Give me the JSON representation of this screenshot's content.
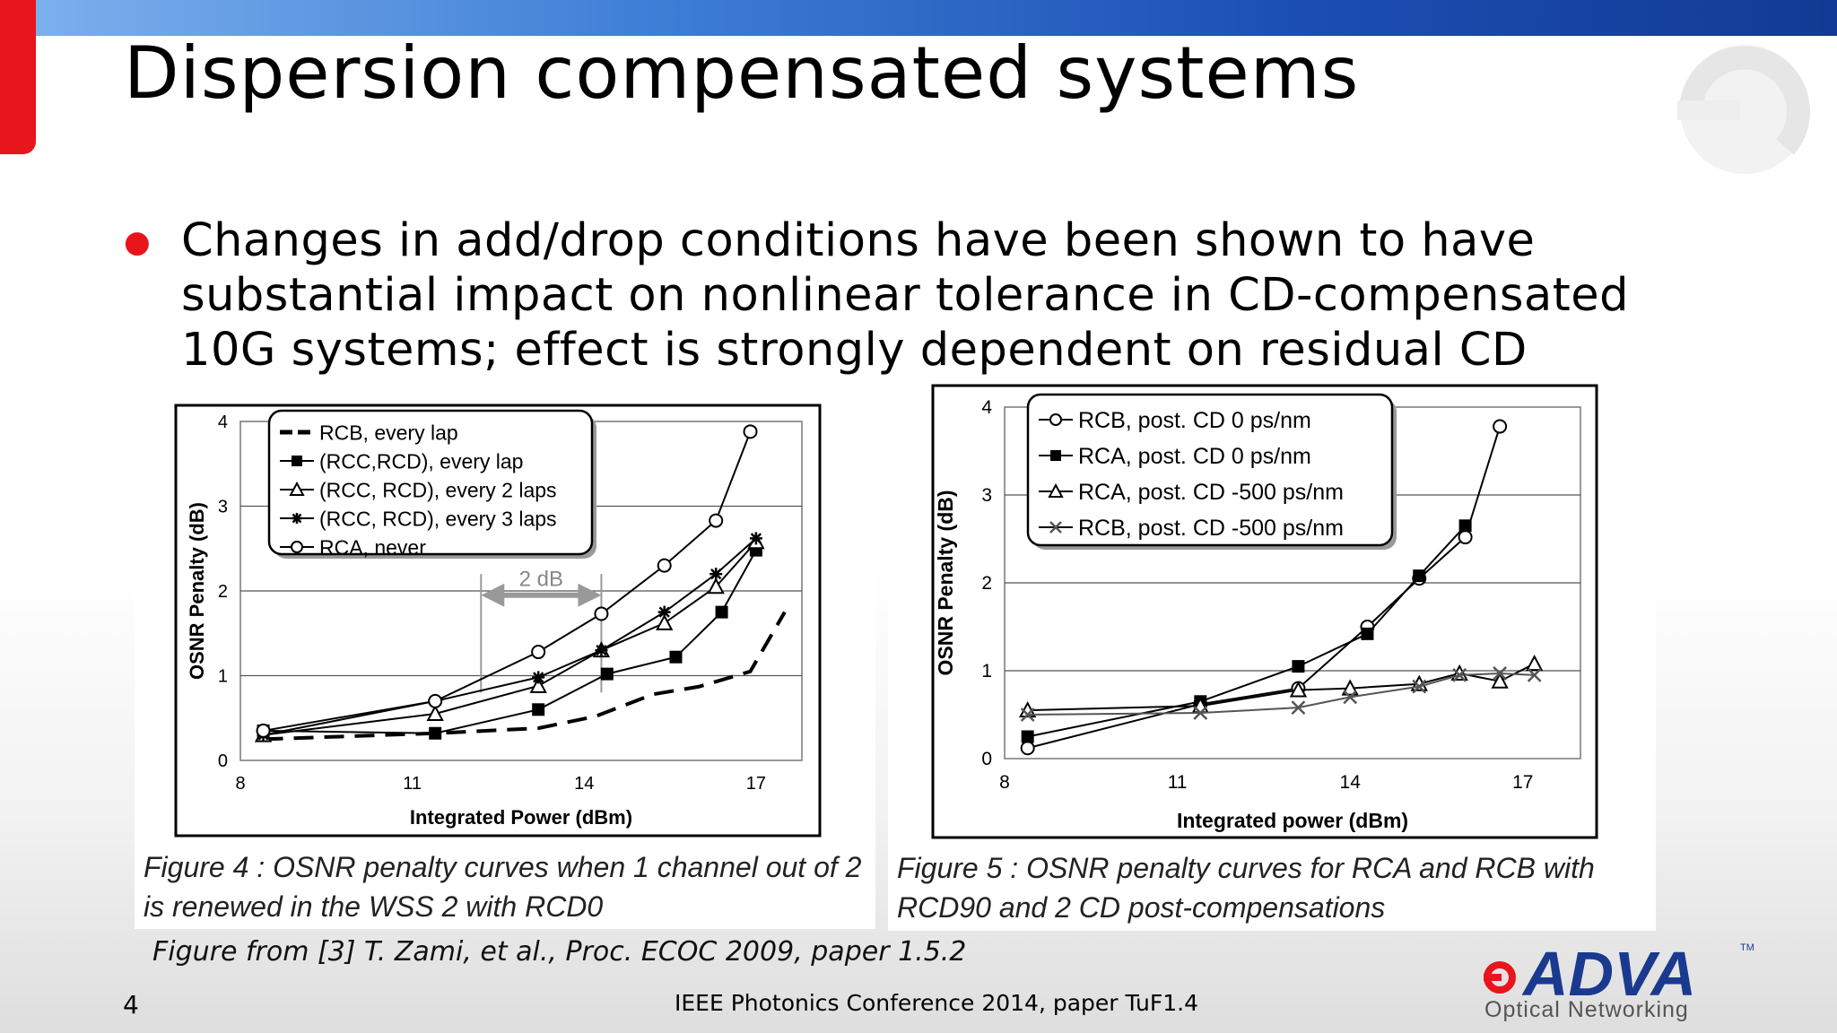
{
  "slide": {
    "title": "Dispersion compensated systems",
    "bullet": "Changes in add/drop conditions have been shown to have substantial impact on nonlinear tolerance in CD-compensated 10G systems; effect is strongly dependent on residual CD",
    "source": "Figure from [3] T. Zami, et al., Proc. ECOC 2009, paper 1.5.2",
    "slide_number": "4",
    "footer": "IEEE Photonics Conference 2014, paper TuF1.4",
    "logo_text": "ADVA",
    "logo_tm": "TM",
    "logo_tagline": "Optical Networking",
    "colors": {
      "accent_red": "#e8161c",
      "bar_blue": "#1c4fb4",
      "logo_blue": "#1a3a8f"
    }
  },
  "figure4": {
    "caption": "Figure 4 : OSNR penalty curves when 1 channel out of 2 is renewed in the WSS 2 with RCD0",
    "annotation": "2 dB"
  },
  "figure5": {
    "caption": "Figure 5 : OSNR penalty curves for RCA and RCB with RCD90 and 2 CD post-compensations"
  },
  "chart_data": [
    {
      "type": "line",
      "xlabel": "Integrated Power (dBm)",
      "ylabel": "OSNR Penalty (dB)",
      "xlim": [
        8,
        17.8
      ],
      "ylim": [
        0,
        4
      ],
      "xticks": [
        "8",
        "11",
        "14",
        "17"
      ],
      "yticks": [
        "0",
        "1",
        "2",
        "3",
        "4"
      ],
      "grid": true,
      "legend_position": "top-left",
      "series": [
        {
          "name": "RCB, every lap",
          "marker": "none",
          "dash": true,
          "points": [
            [
              8.4,
              0.25
            ],
            [
              11.4,
              0.32
            ],
            [
              13.2,
              0.38
            ],
            [
              14.2,
              0.52
            ],
            [
              15.2,
              0.78
            ],
            [
              16.0,
              0.87
            ],
            [
              16.9,
              1.05
            ],
            [
              17.5,
              1.75
            ]
          ]
        },
        {
          "name": "(RCC,RCD), every lap",
          "marker": "square",
          "points": [
            [
              8.4,
              0.35
            ],
            [
              11.4,
              0.32
            ],
            [
              13.2,
              0.6
            ],
            [
              14.4,
              1.02
            ],
            [
              15.6,
              1.22
            ],
            [
              16.4,
              1.75
            ],
            [
              17.0,
              2.48
            ]
          ]
        },
        {
          "name": "(RCC, RCD), every 2 laps",
          "marker": "triangle",
          "points": [
            [
              8.4,
              0.3
            ],
            [
              11.4,
              0.55
            ],
            [
              13.2,
              0.88
            ],
            [
              14.3,
              1.3
            ],
            [
              15.4,
              1.62
            ],
            [
              16.3,
              2.05
            ],
            [
              17.0,
              2.58
            ]
          ]
        },
        {
          "name": "(RCC, RCD), every 3 laps",
          "marker": "star",
          "points": [
            [
              8.4,
              0.3
            ],
            [
              11.4,
              0.7
            ],
            [
              13.2,
              0.98
            ],
            [
              14.3,
              1.3
            ],
            [
              15.4,
              1.75
            ],
            [
              16.3,
              2.2
            ],
            [
              17.0,
              2.62
            ]
          ]
        },
        {
          "name": "RCA, never",
          "marker": "circle",
          "points": [
            [
              8.4,
              0.35
            ],
            [
              11.4,
              0.7
            ],
            [
              13.2,
              1.28
            ],
            [
              14.3,
              1.73
            ],
            [
              15.4,
              2.3
            ],
            [
              16.3,
              2.83
            ],
            [
              16.9,
              3.88
            ]
          ]
        }
      ]
    },
    {
      "type": "line",
      "xlabel": "Integrated power (dBm)",
      "ylabel": "OSNR Penalty (dB)",
      "xlim": [
        8,
        18
      ],
      "ylim": [
        0,
        4
      ],
      "xticks": [
        "8",
        "11",
        "14",
        "17"
      ],
      "yticks": [
        "0",
        "1",
        "2",
        "3",
        "4"
      ],
      "grid": true,
      "legend_position": "top-left",
      "series": [
        {
          "name": "RCB, post. CD 0 ps/nm",
          "marker": "circle",
          "points": [
            [
              8.4,
              0.12
            ],
            [
              11.4,
              0.62
            ],
            [
              13.1,
              0.8
            ],
            [
              14.3,
              1.5
            ],
            [
              15.2,
              2.05
            ],
            [
              16.0,
              2.52
            ],
            [
              16.6,
              3.78
            ]
          ]
        },
        {
          "name": "RCA, post. CD 0 ps/nm",
          "marker": "square",
          "points": [
            [
              8.4,
              0.25
            ],
            [
              11.4,
              0.65
            ],
            [
              13.1,
              1.05
            ],
            [
              14.3,
              1.42
            ],
            [
              15.2,
              2.08
            ],
            [
              16.0,
              2.65
            ]
          ]
        },
        {
          "name": "RCA, post. CD -500 ps/nm",
          "marker": "triangle",
          "points": [
            [
              8.4,
              0.55
            ],
            [
              11.4,
              0.6
            ],
            [
              13.1,
              0.78
            ],
            [
              14.0,
              0.8
            ],
            [
              15.2,
              0.85
            ],
            [
              15.9,
              0.97
            ],
            [
              16.6,
              0.88
            ],
            [
              17.2,
              1.08
            ]
          ]
        },
        {
          "name": "RCB, post. CD -500 ps/nm",
          "marker": "x",
          "points": [
            [
              8.4,
              0.5
            ],
            [
              11.4,
              0.52
            ],
            [
              13.1,
              0.58
            ],
            [
              14.0,
              0.7
            ],
            [
              15.2,
              0.82
            ],
            [
              15.9,
              0.95
            ],
            [
              16.6,
              0.97
            ],
            [
              17.2,
              0.95
            ]
          ]
        }
      ]
    }
  ]
}
